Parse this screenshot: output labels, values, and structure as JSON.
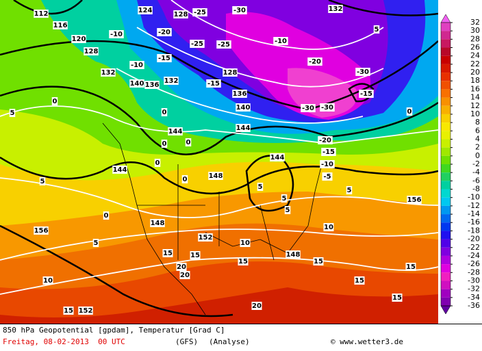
{
  "map": {
    "map_labels": [
      112,
      116,
      120,
      124,
      128,
      132,
      128,
      132,
      140,
      136,
      132,
      128,
      136,
      140,
      144,
      144,
      144,
      144,
      148,
      148,
      152,
      156,
      156,
      152,
      148,
      -25,
      -20,
      -25,
      -25,
      -30,
      -10,
      -20,
      -30,
      -15,
      -30,
      -30,
      -20,
      -15,
      -10,
      -5,
      -10,
      -10,
      -15,
      -15,
      0,
      0,
      0,
      0,
      0,
      5,
      5,
      5,
      5,
      10,
      10,
      5,
      0,
      5,
      0,
      10,
      15,
      15,
      15,
      15,
      15,
      15,
      20,
      20,
      20,
      15,
      15,
      5,
      0,
      5
    ],
    "colorbar": {
      "ticks": [
        32,
        30,
        28,
        26,
        24,
        22,
        20,
        18,
        16,
        14,
        12,
        10,
        8,
        6,
        4,
        2,
        0,
        -2,
        -4,
        -6,
        -8,
        -10,
        -12,
        -14,
        -16,
        -18,
        -20,
        -22,
        -24,
        -26,
        -28,
        -30,
        -32,
        -34,
        -36
      ],
      "colors": [
        "#f060f0",
        "#e040c0",
        "#d02890",
        "#c81860",
        "#b80828",
        "#c80000",
        "#d81800",
        "#e83000",
        "#f05000",
        "#f87000",
        "#f89000",
        "#f8b000",
        "#f8d000",
        "#f8e800",
        "#e8f000",
        "#c8f000",
        "#a0e800",
        "#70e000",
        "#40d820",
        "#20d060",
        "#00d0a0",
        "#00d8d0",
        "#00c8f0",
        "#0098f0",
        "#0068f0",
        "#0038f0",
        "#2010f0",
        "#5000e8",
        "#8000e0",
        "#b000e0",
        "#e000e0",
        "#f020c0",
        "#d010c0",
        "#a000c0",
        "#8000b0",
        "#6000a0"
      ]
    },
    "footer": {
      "title": "850 hPa Geopotential [gpdam], Temperatur [Grad C]",
      "date": "Freitag, 08-02-2013  00 UTC",
      "model": "(GFS)",
      "run": "(Analyse)",
      "source": "© www.wetter3.de"
    }
  }
}
